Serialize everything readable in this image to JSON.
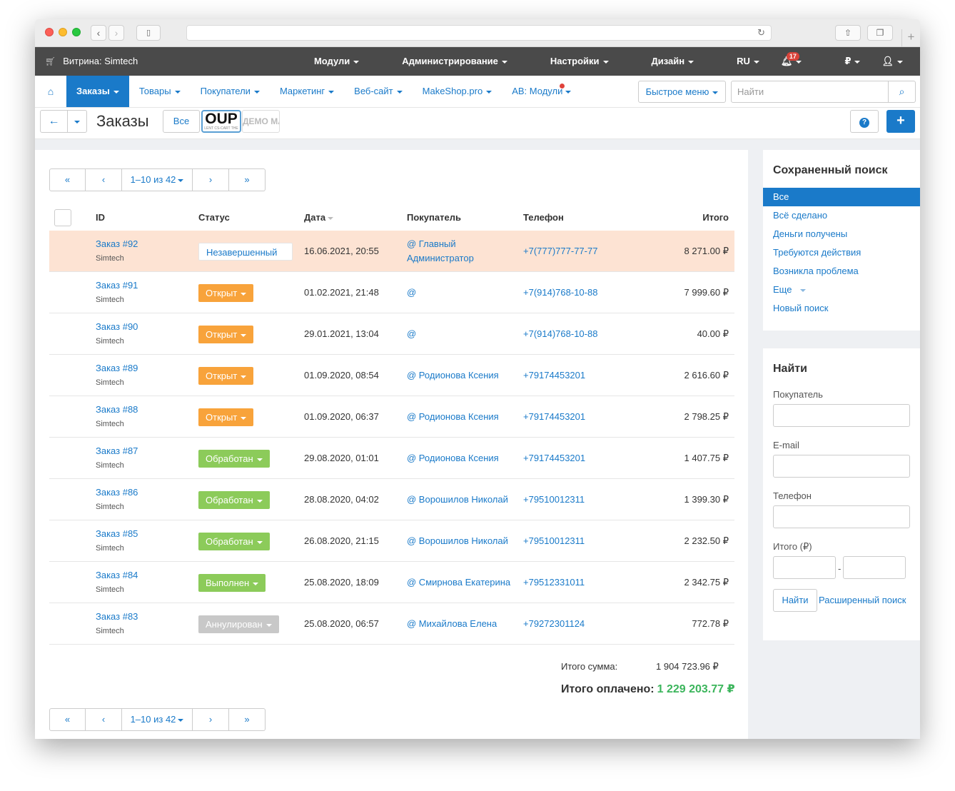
{
  "topbar": {
    "storefront": "Витрина: Simtech",
    "menu": [
      "Модули",
      "Администрирование",
      "Настройки",
      "Дизайн",
      "RU"
    ],
    "notifications": "17",
    "currency": "₽"
  },
  "nav": {
    "items": [
      "Заказы",
      "Товары",
      "Покупатели",
      "Маркетинг",
      "Веб-сайт",
      "MakeShop.pro",
      "AB: Модули"
    ],
    "quick_menu": "Быстрое меню",
    "search_placeholder": "Найти"
  },
  "title": {
    "page_title": "Заказы",
    "all_button": "Все",
    "logo1": "OUP",
    "logo1_sub": "LENT CS-CART THE",
    "logo2": "ДЕМО МА"
  },
  "pager": {
    "first": "«",
    "prev": "‹",
    "range": "1–10 из 42",
    "next": "›",
    "last": "»"
  },
  "table": {
    "headers": {
      "id": "ID",
      "status": "Статус",
      "date": "Дата",
      "customer": "Покупатель",
      "phone": "Телефон",
      "total": "Итого"
    },
    "rows": [
      {
        "id": "Заказ #92",
        "shop": "Simtech",
        "status": "Незавершенный",
        "date": "16.06.2021, 20:55",
        "customer": "@ Главный Администратор",
        "phone": "+7(777)777-77-77",
        "total": "8 271.00 ₽"
      },
      {
        "id": "Заказ #91",
        "shop": "Simtech",
        "status": "Открыт",
        "date": "01.02.2021, 21:48",
        "customer": "@",
        "phone": "+7(914)768-10-88",
        "total": "7 999.60 ₽"
      },
      {
        "id": "Заказ #90",
        "shop": "Simtech",
        "status": "Открыт",
        "date": "29.01.2021, 13:04",
        "customer": "@",
        "phone": "+7(914)768-10-88",
        "total": "40.00 ₽"
      },
      {
        "id": "Заказ #89",
        "shop": "Simtech",
        "status": "Открыт",
        "date": "01.09.2020, 08:54",
        "customer": "@ Родионова Ксения",
        "phone": "+79174453201",
        "total": "2 616.60 ₽"
      },
      {
        "id": "Заказ #88",
        "shop": "Simtech",
        "status": "Открыт",
        "date": "01.09.2020, 06:37",
        "customer": "@ Родионова Ксения",
        "phone": "+79174453201",
        "total": "2 798.25 ₽"
      },
      {
        "id": "Заказ #87",
        "shop": "Simtech",
        "status": "Обработан",
        "date": "29.08.2020, 01:01",
        "customer": "@ Родионова Ксения",
        "phone": "+79174453201",
        "total": "1 407.75 ₽"
      },
      {
        "id": "Заказ #86",
        "shop": "Simtech",
        "status": "Обработан",
        "date": "28.08.2020, 04:02",
        "customer": "@ Ворошилов Николай",
        "phone": "+79510012311",
        "total": "1 399.30 ₽"
      },
      {
        "id": "Заказ #85",
        "shop": "Simtech",
        "status": "Обработан",
        "date": "26.08.2020, 21:15",
        "customer": "@ Ворошилов Николай",
        "phone": "+79510012311",
        "total": "2 232.50 ₽"
      },
      {
        "id": "Заказ #84",
        "shop": "Simtech",
        "status": "Выполнен",
        "date": "25.08.2020, 18:09",
        "customer": "@ Смирнова Екатерина",
        "phone": "+79512331011",
        "total": "2 342.75 ₽"
      },
      {
        "id": "Заказ #83",
        "shop": "Simtech",
        "status": "Аннулирован",
        "date": "25.08.2020, 06:57",
        "customer": "@ Михайлова Елена",
        "phone": "+79272301124",
        "total": "772.78 ₽"
      }
    ]
  },
  "summary": {
    "total_label": "Итого сумма:",
    "total_value": "1 904 723.96 ₽",
    "paid_label": "Итого оплачено:",
    "paid_value": "1 229 203.77 ₽"
  },
  "saved_search": {
    "title": "Сохраненный поиск",
    "items": [
      "Все",
      "Всё сделано",
      "Деньги получены",
      "Требуются действия",
      "Возникла проблема",
      "Еще",
      "Новый поиск"
    ]
  },
  "find": {
    "title": "Найти",
    "customer_label": "Покупатель",
    "email_label": "E-mail",
    "phone_label": "Телефон",
    "total_label": "Итого (₽)",
    "dash": "-",
    "find_button": "Найти",
    "advanced": "Расширенный поиск"
  },
  "colors": {
    "accent": "#1a7ac9",
    "open": "#f8a33b",
    "processed": "#8ccb5a",
    "cancelled": "#c8c8c8",
    "paid": "#3cb55c"
  }
}
